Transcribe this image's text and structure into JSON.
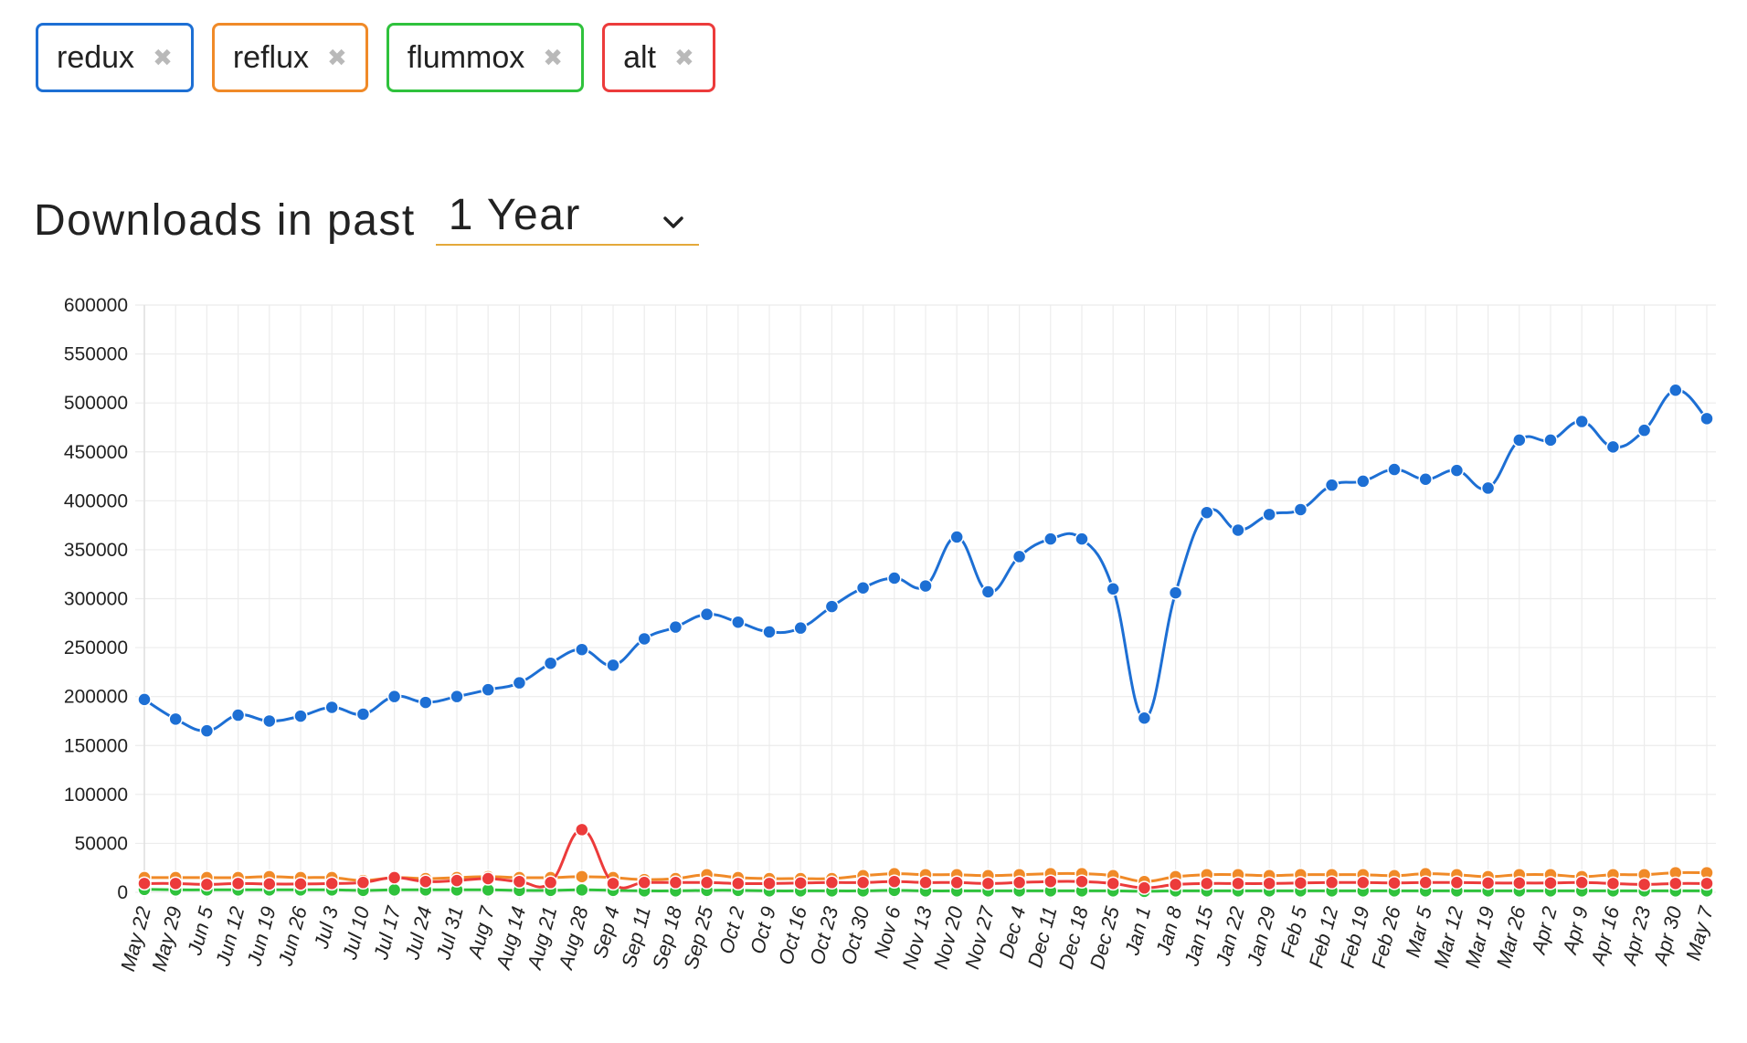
{
  "tags": [
    {
      "label": "redux",
      "color": "#1d6fd4"
    },
    {
      "label": "reflux",
      "color": "#f08a28"
    },
    {
      "label": "flummox",
      "color": "#2fc23c"
    },
    {
      "label": "alt",
      "color": "#ec3b3b"
    }
  ],
  "remove_icon": "close-icon",
  "heading": {
    "prefix": "Downloads in past",
    "period": "1 Year",
    "period_icon": "chevron-down-icon",
    "accent_color": "#e4a93a"
  },
  "chart_data": {
    "type": "line",
    "ylim": [
      0,
      600000
    ],
    "yticks": [
      "600000",
      "550000",
      "500000",
      "450000",
      "400000",
      "350000",
      "300000",
      "250000",
      "200000",
      "150000",
      "100000",
      "50000",
      "0"
    ],
    "grid": true,
    "legend": "none",
    "categories": [
      "May 22",
      "May 29",
      "Jun 5",
      "Jun 12",
      "Jun 19",
      "Jun 26",
      "Jul 3",
      "Jul 10",
      "Jul 17",
      "Jul 24",
      "Jul 31",
      "Aug 7",
      "Aug 14",
      "Aug 21",
      "Aug 28",
      "Sep 4",
      "Sep 11",
      "Sep 18",
      "Sep 25",
      "Oct 2",
      "Oct 9",
      "Oct 16",
      "Oct 23",
      "Oct 30",
      "Nov 6",
      "Nov 13",
      "Nov 20",
      "Nov 27",
      "Dec 4",
      "Dec 11",
      "Dec 18",
      "Dec 25",
      "Jan 1",
      "Jan 8",
      "Jan 15",
      "Jan 22",
      "Jan 29",
      "Feb 5",
      "Feb 12",
      "Feb 19",
      "Feb 26",
      "Mar 5",
      "Mar 12",
      "Mar 19",
      "Mar 26",
      "Apr 2",
      "Apr 9",
      "Apr 16",
      "Apr 23",
      "Apr 30",
      "May 7"
    ],
    "series": [
      {
        "name": "redux",
        "color": "#1d6fd4",
        "values": [
          197000,
          177000,
          165000,
          181000,
          175000,
          180000,
          189000,
          182000,
          200000,
          194000,
          200000,
          207000,
          214000,
          234000,
          248000,
          232000,
          259000,
          271000,
          284000,
          276000,
          266000,
          270000,
          292000,
          311000,
          321000,
          313000,
          363000,
          307000,
          343000,
          361000,
          361000,
          310000,
          178000,
          306000,
          388000,
          370000,
          386000,
          391000,
          416000,
          420000,
          432000,
          422000,
          431000,
          413000,
          462000,
          462000,
          481000,
          455000,
          472000,
          513000,
          484000
        ]
      },
      {
        "name": "reflux",
        "color": "#f08a28",
        "values": [
          15000,
          15000,
          15000,
          15000,
          16000,
          15000,
          15000,
          12000,
          15000,
          14000,
          15000,
          16000,
          15000,
          15000,
          16000,
          15000,
          13000,
          14000,
          18000,
          15000,
          14000,
          14000,
          14000,
          17000,
          19000,
          18000,
          18000,
          17000,
          18000,
          19000,
          19000,
          17000,
          11000,
          16000,
          18000,
          18000,
          17000,
          18000,
          18000,
          18000,
          17000,
          19000,
          18000,
          16000,
          18000,
          18000,
          16000,
          18000,
          18000,
          20000,
          20000
        ]
      },
      {
        "name": "flummox",
        "color": "#2fc23c",
        "values": [
          3000,
          2500,
          2500,
          2500,
          2500,
          2500,
          2500,
          2000,
          2500,
          2500,
          2500,
          2500,
          2000,
          2000,
          2500,
          2000,
          1500,
          1500,
          2000,
          2000,
          1500,
          1500,
          1500,
          1500,
          2000,
          1500,
          1500,
          1500,
          1500,
          1500,
          1500,
          1500,
          1000,
          1500,
          1500,
          1500,
          1500,
          1500,
          1500,
          1500,
          1500,
          1500,
          1500,
          1500,
          1500,
          1500,
          1500,
          1500,
          1500,
          1500,
          1500
        ]
      },
      {
        "name": "alt",
        "color": "#ec3b3b",
        "values": [
          9000,
          9000,
          8000,
          9000,
          8500,
          8500,
          9000,
          10000,
          15000,
          11000,
          12000,
          14000,
          11000,
          10000,
          64000,
          9000,
          10000,
          10000,
          10000,
          9000,
          9000,
          9500,
          10000,
          10000,
          11000,
          10000,
          10000,
          9000,
          10000,
          11000,
          11000,
          9000,
          4500,
          8000,
          9000,
          9000,
          9000,
          9500,
          10000,
          10000,
          9500,
          10000,
          10000,
          9500,
          9500,
          9500,
          10000,
          9000,
          8000,
          9000,
          9000
        ]
      }
    ]
  }
}
